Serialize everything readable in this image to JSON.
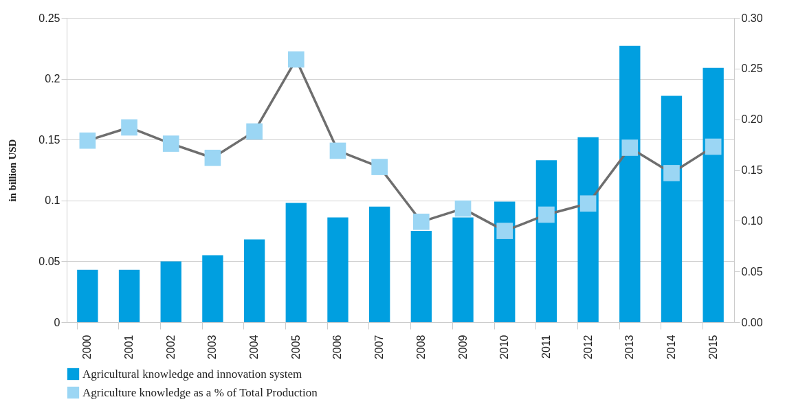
{
  "chart_data": {
    "type": "bar",
    "ylabel": "in billion USD",
    "categories": [
      "2000",
      "2001",
      "2002",
      "2003",
      "2004",
      "2005",
      "2006",
      "2007",
      "2008",
      "2009",
      "2010",
      "2011",
      "2012",
      "2013",
      "2014",
      "2015"
    ],
    "series": [
      {
        "name": "Agricultural knowledge and innovation system",
        "color": "#009fe0",
        "values": [
          0.043,
          0.043,
          0.05,
          0.055,
          0.068,
          0.098,
          0.086,
          0.095,
          0.075,
          0.086,
          0.099,
          0.133,
          0.152,
          0.227,
          0.186,
          0.209
        ]
      },
      {
        "name": "Agriculture knowledge as a % of Total Production",
        "type": "line",
        "axis": "y2",
        "color": "#9bd6f4",
        "marker": "square",
        "values": [
          0.179,
          0.192,
          0.176,
          0.162,
          0.188,
          0.259,
          0.169,
          0.153,
          0.099,
          0.112,
          0.09,
          0.106,
          0.117,
          0.172,
          0.147,
          0.173
        ]
      }
    ],
    "ylim": [
      0,
      0.25
    ],
    "yticks": [
      0,
      0.05,
      0.1,
      0.15,
      0.2,
      0.25
    ],
    "y2lim": [
      0,
      0.3
    ],
    "y2ticks": [
      {
        "value": 0,
        "label": "0.00"
      },
      0.05,
      {
        "value": 0.1,
        "label": "0.10"
      },
      0.15,
      {
        "value": 0.2,
        "label": "0.20"
      },
      0.25,
      {
        "value": 0.3,
        "label": "0.30"
      }
    ],
    "grid": "y",
    "legend": "bottom"
  }
}
